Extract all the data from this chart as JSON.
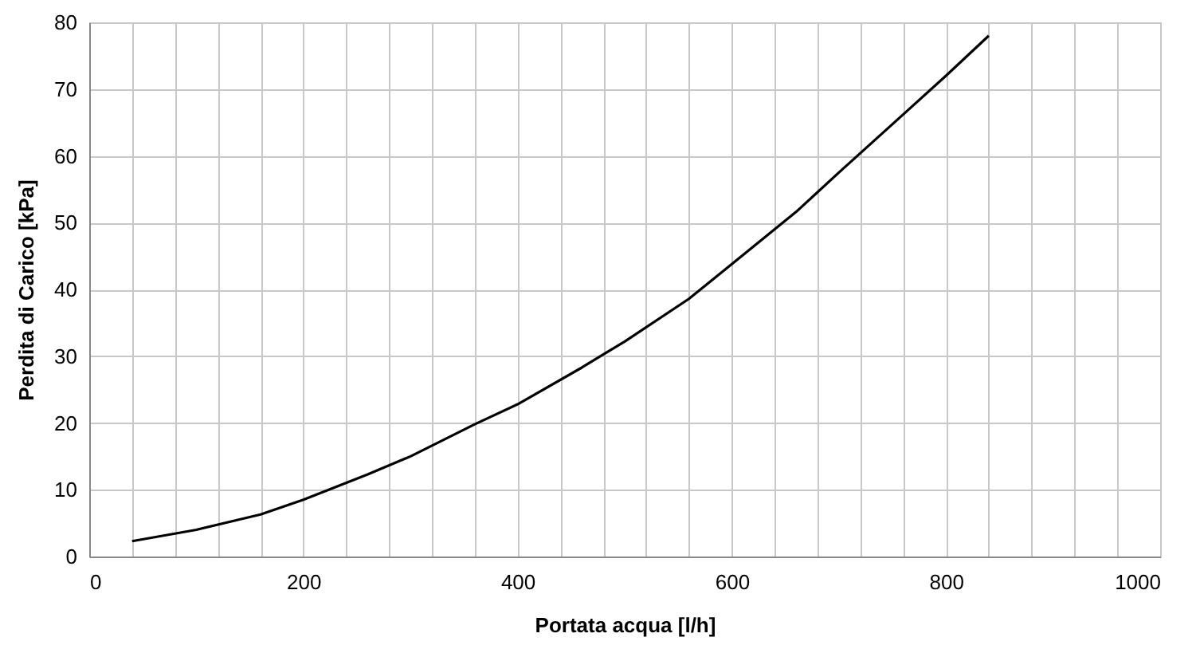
{
  "chart_data": {
    "type": "line",
    "xlabel": "Portata acqua [l/h]",
    "ylabel": "Perdita di Carico [kPa]",
    "x": [
      40,
      100,
      160,
      200,
      260,
      300,
      360,
      400,
      460,
      500,
      560,
      600,
      660,
      700,
      760,
      800,
      840
    ],
    "series": [
      {
        "color": "#000000",
        "values": [
          2.3,
          4.0,
          6.3,
          8.5,
          12.3,
          15.0,
          19.8,
          22.8,
          28.3,
          32.2,
          38.6,
          43.8,
          51.6,
          57.5,
          66.2,
          72.0,
          78.0
        ]
      }
    ],
    "xlim": [
      0,
      1000
    ],
    "ylim": [
      0,
      80
    ],
    "xticks": [
      0,
      {
        "value": 40,
        "label": null
      },
      {
        "value": 80,
        "label": null
      },
      {
        "value": 120,
        "label": null
      },
      {
        "value": 160,
        "label": null
      },
      200,
      {
        "value": 240,
        "label": null
      },
      {
        "value": 280,
        "label": null
      },
      {
        "value": 320,
        "label": null
      },
      {
        "value": 360,
        "label": null
      },
      400,
      {
        "value": 440,
        "label": null
      },
      {
        "value": 480,
        "label": null
      },
      {
        "value": 520,
        "label": null
      },
      {
        "value": 560,
        "label": null
      },
      600,
      {
        "value": 640,
        "label": null
      },
      {
        "value": 680,
        "label": null
      },
      {
        "value": 720,
        "label": null
      },
      {
        "value": 760,
        "label": null
      },
      800,
      {
        "value": 840,
        "label": null
      },
      {
        "value": 880,
        "label": null
      },
      {
        "value": 920,
        "label": null
      },
      {
        "value": 960,
        "label": null
      },
      1000
    ],
    "yticks": [
      0,
      10,
      20,
      30,
      40,
      50,
      60,
      70,
      80
    ],
    "grid": true,
    "marker": "none",
    "line_style": "solid",
    "legend": false
  }
}
